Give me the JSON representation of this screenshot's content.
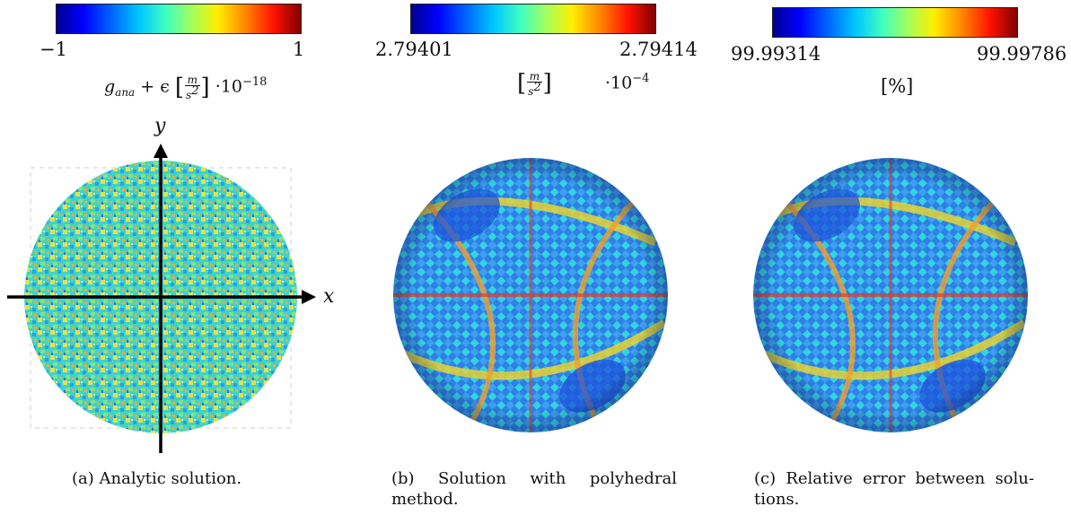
{
  "panels": [
    {
      "colorbar": {
        "min_label": "−1",
        "max_label": "1"
      },
      "unit": {
        "lhs": "g",
        "lhs_sub": "ana",
        "plus": "+ ϵ",
        "num": "m",
        "den": "s",
        "den_sup": "2",
        "scale": "·10",
        "scale_exp": "−18"
      },
      "axes": {
        "x_label": "x",
        "y_label": "y"
      },
      "caption": "(a) Analytic solution."
    },
    {
      "colorbar": {
        "min_label": "2.79401",
        "max_label": "2.79414"
      },
      "unit": {
        "num": "m",
        "den": "s",
        "den_sup": "2",
        "scale": "·10",
        "scale_exp": "−4"
      },
      "caption_line1": [
        "(b)",
        "Solution",
        "with",
        "polyhedral"
      ],
      "caption_line2": "method."
    },
    {
      "colorbar": {
        "min_label": "99.99314",
        "max_label": "99.99786"
      },
      "unit": {
        "text": "[%]"
      },
      "caption_line1": [
        "(c)",
        "Relative",
        "error",
        "between",
        "solu-"
      ],
      "caption_line2": "tions."
    }
  ],
  "colors": {
    "colormap": [
      "#00008f",
      "#0000ff",
      "#0060ff",
      "#00c8ff",
      "#40ffc0",
      "#a0ff60",
      "#ffee00",
      "#ff8000",
      "#ff1000",
      "#800000"
    ],
    "axis": "#000000"
  }
}
